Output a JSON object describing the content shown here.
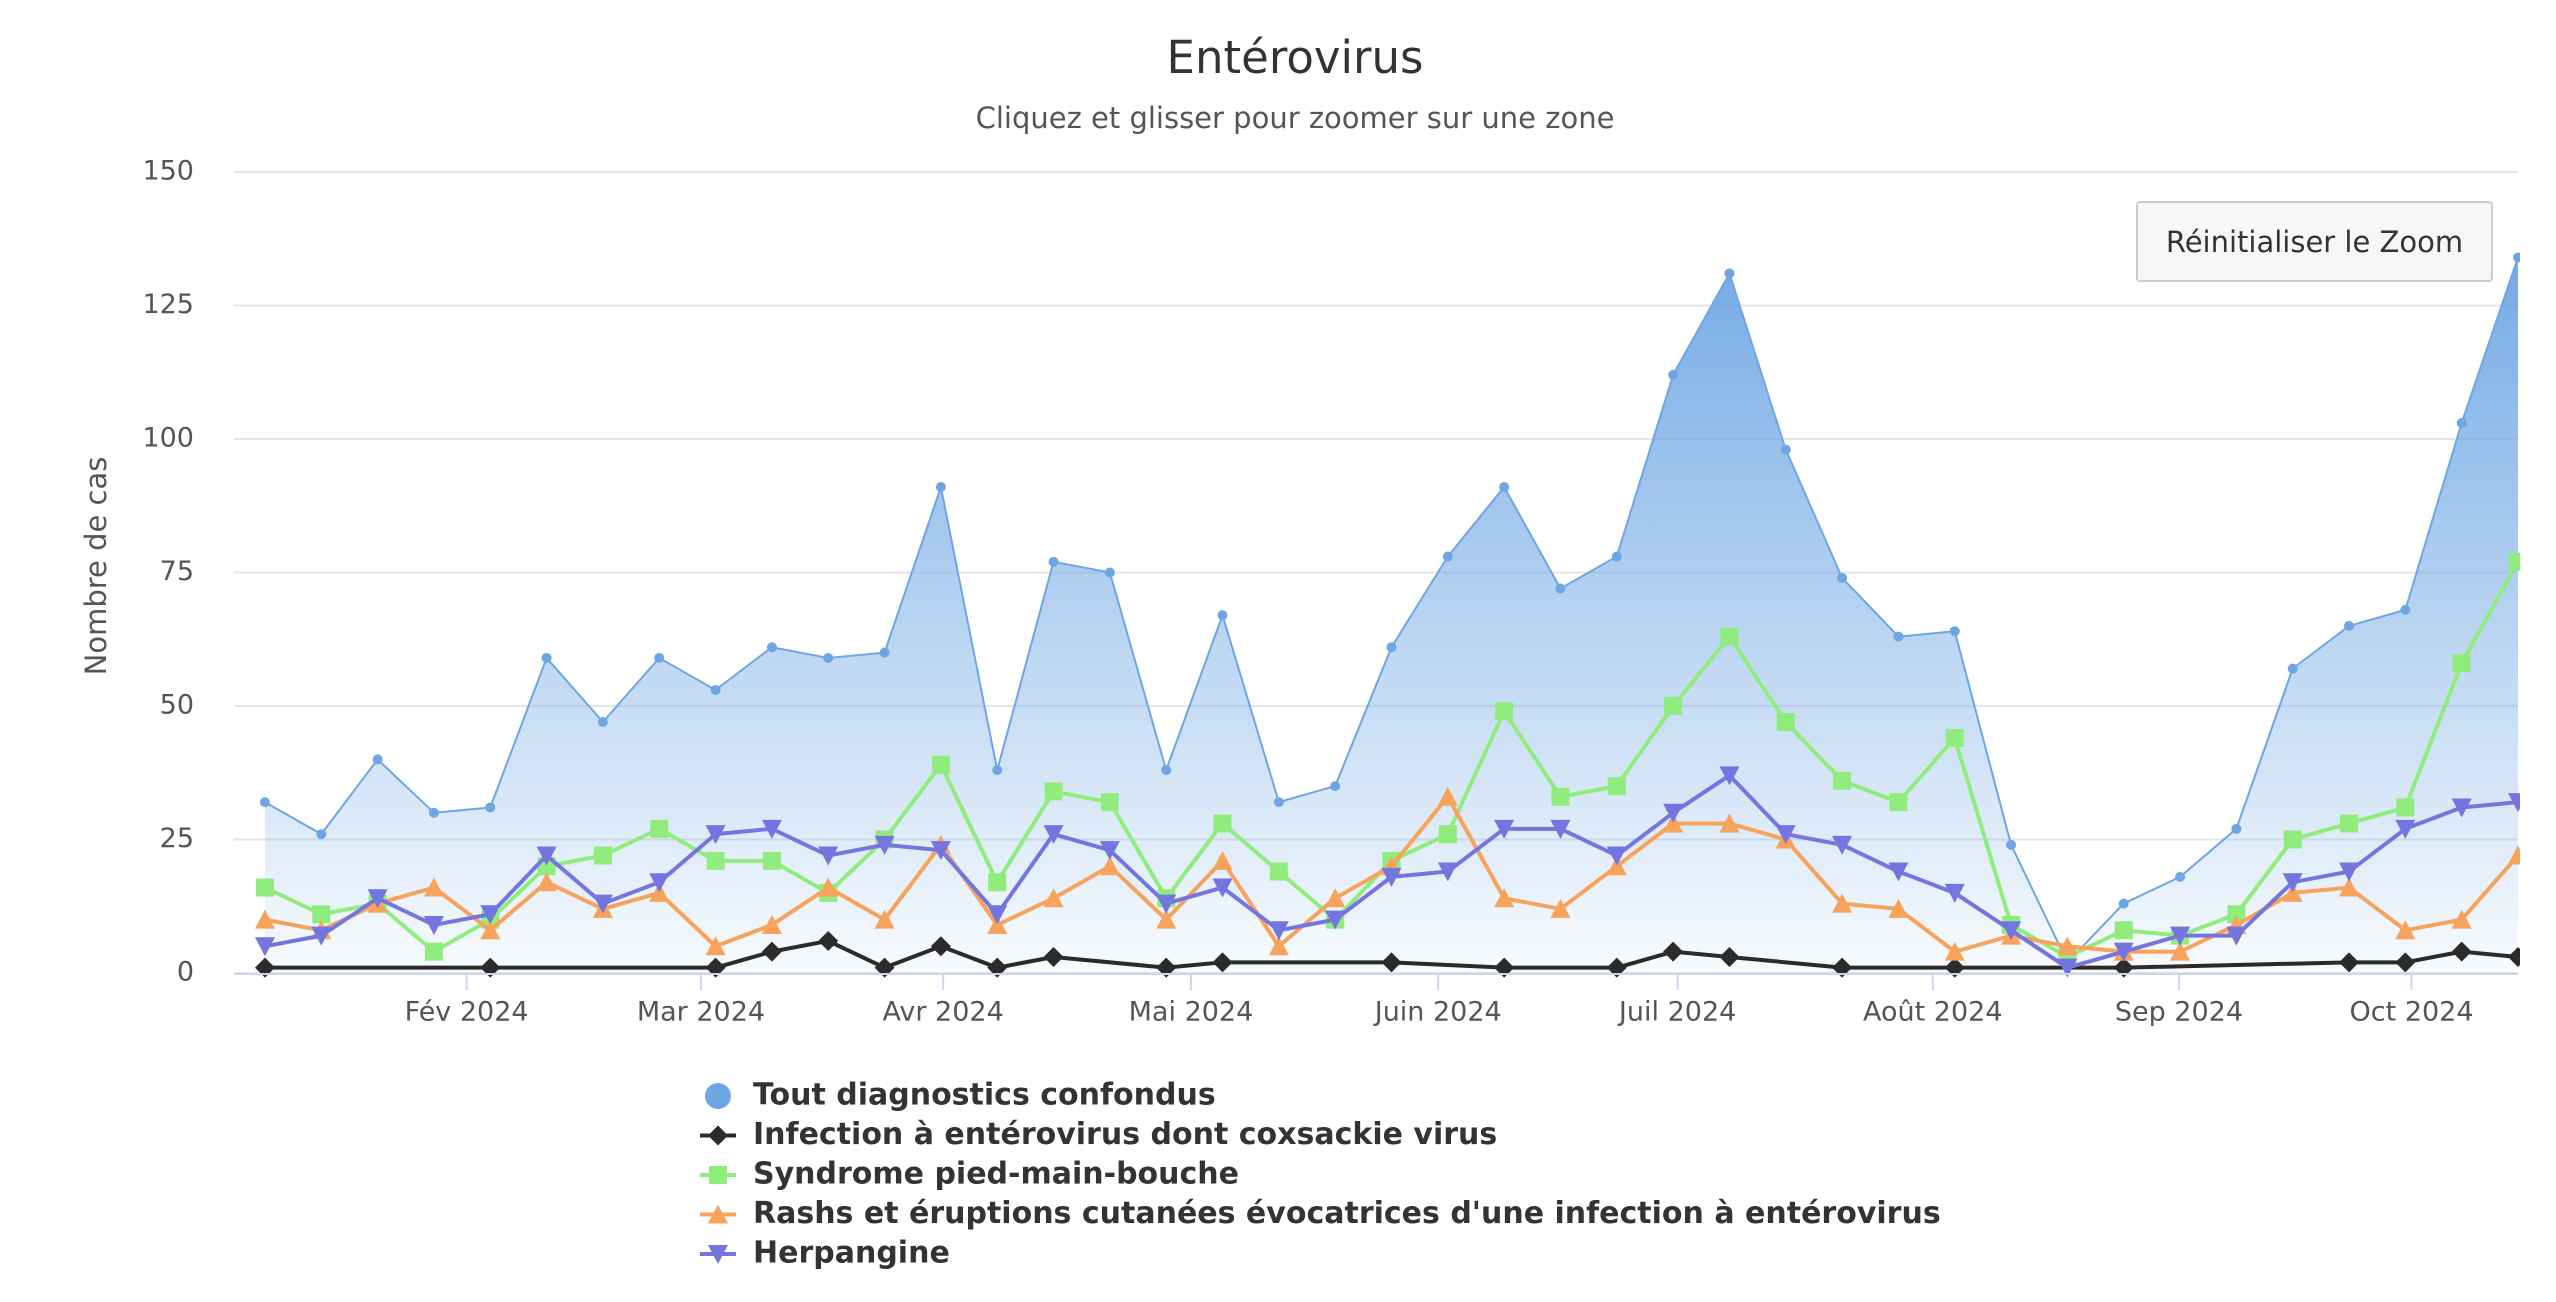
{
  "chart_data": {
    "type": "line",
    "title": "Entérovirus",
    "subtitle": "Cliquez et glisser pour zoomer sur une zone",
    "y_label": "Nombre de cas",
    "reset_zoom_button": "Réinitialiser le Zoom",
    "xlim": [
      -0.55,
      40
    ],
    "xticks": [
      {
        "value": 3.58,
        "label": "Fév 2024"
      },
      {
        "value": 7.74,
        "label": "Mar 2024"
      },
      {
        "value": 12.04,
        "label": "Avr 2024"
      },
      {
        "value": 16.44,
        "label": "Mai 2024"
      },
      {
        "value": 20.83,
        "label": "Juin 2024"
      },
      {
        "value": 25.08,
        "label": "Juil 2024"
      },
      {
        "value": 29.61,
        "label": "Août 2024"
      },
      {
        "value": 33.98,
        "label": "Sep 2024"
      },
      {
        "value": 38.11,
        "label": "Oct 2024"
      }
    ],
    "ylim": [
      0,
      150
    ],
    "yticks": [
      0,
      25,
      50,
      75,
      100,
      125,
      150
    ],
    "grid": true,
    "connect_nulls": true,
    "series": [
      {
        "name": "Tout diagnostics confondus",
        "color": "#6ea6e4",
        "kind": "area",
        "marker": "circle",
        "values": [
          32,
          26,
          40,
          30,
          31,
          59,
          47,
          59,
          53,
          61,
          59,
          60,
          91,
          38,
          77,
          75,
          38,
          67,
          32,
          35,
          61,
          78,
          91,
          72,
          78,
          112,
          131,
          98,
          74,
          63,
          64,
          24,
          2,
          13,
          18,
          27,
          57,
          65,
          68,
          103,
          134
        ]
      },
      {
        "name": "Infection à entérovirus dont coxsackie virus",
        "color": "#2b2b2b",
        "kind": "line",
        "marker": "diamond",
        "values": [
          1,
          null,
          null,
          null,
          1,
          null,
          null,
          null,
          1,
          4,
          6,
          1,
          5,
          1,
          3,
          null,
          1,
          2,
          null,
          null,
          2,
          null,
          1,
          null,
          1,
          4,
          3,
          null,
          1,
          null,
          1,
          null,
          null,
          1,
          null,
          null,
          null,
          2,
          2,
          4,
          3
        ]
      },
      {
        "name": "Syndrome pied-main-bouche",
        "color": "#90ed7d",
        "kind": "line",
        "marker": "square",
        "values": [
          16,
          11,
          13,
          4,
          10,
          20,
          22,
          27,
          21,
          21,
          15,
          25,
          39,
          17,
          34,
          32,
          14,
          28,
          19,
          10,
          21,
          26,
          49,
          33,
          35,
          50,
          63,
          47,
          36,
          32,
          44,
          9,
          3,
          8,
          7,
          11,
          25,
          28,
          31,
          58,
          77
        ]
      },
      {
        "name": "Rashs et éruptions cutanées évocatrices d'une infection à entérovirus",
        "color": "#f7a35c",
        "kind": "line",
        "marker": "triangle",
        "values": [
          10,
          8,
          13,
          16,
          8,
          17,
          12,
          15,
          5,
          9,
          16,
          10,
          24,
          9,
          14,
          20,
          10,
          21,
          5,
          14,
          20,
          33,
          14,
          12,
          20,
          28,
          28,
          25,
          13,
          12,
          4,
          7,
          5,
          4,
          4,
          9,
          15,
          16,
          8,
          10,
          22
        ]
      },
      {
        "name": "Herpangine",
        "color": "#7575e0",
        "kind": "line",
        "marker": "triangle-down",
        "values": [
          5,
          7,
          14,
          9,
          11,
          22,
          13,
          17,
          26,
          27,
          22,
          24,
          23,
          11,
          26,
          23,
          13,
          16,
          8,
          10,
          18,
          19,
          27,
          27,
          22,
          30,
          37,
          26,
          24,
          19,
          15,
          8,
          1,
          4,
          7,
          7,
          17,
          19,
          27,
          31,
          32
        ]
      }
    ]
  }
}
